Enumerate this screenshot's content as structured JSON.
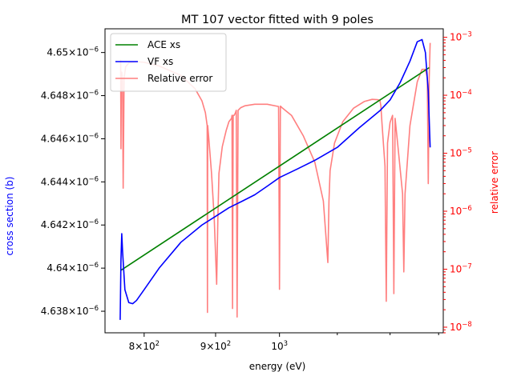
{
  "chart_data": {
    "type": "line",
    "title": "MT 107 vector fitted with 9 poles",
    "xlabel": "energy (eV)",
    "ylabel": "cross section (b)",
    "y2label": "relative error",
    "xscale": "log",
    "y2scale": "log",
    "xlim": [
      750,
      1310
    ],
    "ylim": [
      4.637e-06,
      4.6511e-06
    ],
    "y2lim": [
      8e-09,
      0.0014
    ],
    "colors": {
      "ace": "#008000",
      "vf": "#0000ff",
      "err": "#ff7f7f",
      "ylabel": "#0000ff",
      "y2label": "#ff0000"
    },
    "x_ticks": [
      {
        "value": 800,
        "base": "8×10",
        "exp": "2"
      },
      {
        "value": 900,
        "base": "9×10",
        "exp": "2"
      },
      {
        "value": 1000,
        "base": "10",
        "exp": "3"
      }
    ],
    "y_ticks": [
      {
        "value": 4.638e-06,
        "base": "4.638×10",
        "exp": "−6"
      },
      {
        "value": 4.64e-06,
        "base": "4.64×10",
        "exp": "−6"
      },
      {
        "value": 4.642e-06,
        "base": "4.642×10",
        "exp": "−6"
      },
      {
        "value": 4.644e-06,
        "base": "4.644×10",
        "exp": "−6"
      },
      {
        "value": 4.646e-06,
        "base": "4.646×10",
        "exp": "−6"
      },
      {
        "value": 4.648e-06,
        "base": "4.648×10",
        "exp": "−6"
      },
      {
        "value": 4.65e-06,
        "base": "4.65×10",
        "exp": "−6"
      }
    ],
    "y2_ticks": [
      {
        "value": 1e-08,
        "base": "10",
        "exp": "−8"
      },
      {
        "value": 1e-07,
        "base": "10",
        "exp": "−7"
      },
      {
        "value": 1e-06,
        "base": "10",
        "exp": "−6"
      },
      {
        "value": 1e-05,
        "base": "10",
        "exp": "−5"
      },
      {
        "value": 0.0001,
        "base": "10",
        "exp": "−4"
      },
      {
        "value": 0.001,
        "base": "10",
        "exp": "−3"
      }
    ],
    "legend": {
      "position": "top-left",
      "entries": [
        "ACE xs",
        "VF xs",
        "Relative error"
      ]
    },
    "series": [
      {
        "name": "ACE xs",
        "axis": "left",
        "x": [
          770,
          1280
        ],
        "y": [
          4.6399e-06,
          4.6493e-06
        ]
      },
      {
        "name": "VF xs",
        "axis": "left",
        "x": [
          769,
          770,
          771,
          772,
          775,
          780,
          785,
          790,
          800,
          820,
          850,
          880,
          900,
          920,
          940,
          960,
          980,
          1000,
          1030,
          1060,
          1100,
          1140,
          1180,
          1200,
          1220,
          1240,
          1255,
          1265,
          1272,
          1278,
          1282
        ],
        "y": [
          4.6376e-06,
          4.6404e-06,
          4.6416e-06,
          4.6408e-06,
          4.639e-06,
          4.6384e-06,
          4.63835e-06,
          4.6385e-06,
          4.639e-06,
          4.64e-06,
          4.6412e-06,
          4.642e-06,
          4.6424e-06,
          4.6428e-06,
          4.6431e-06,
          4.6434e-06,
          4.6438e-06,
          4.6442e-06,
          4.6446e-06,
          4.645e-06,
          4.6456e-06,
          4.6465e-06,
          4.6473e-06,
          4.6478e-06,
          4.6486e-06,
          4.6496e-06,
          4.6505e-06,
          4.6506e-06,
          4.65e-06,
          4.6482e-06,
          4.6456e-06
        ]
      },
      {
        "name": "Relative error",
        "axis": "right",
        "x": [
          769,
          769.6,
          770,
          770.5,
          771,
          772,
          772.8,
          773.3,
          774,
          776,
          780,
          790,
          800,
          820,
          850,
          870,
          880,
          885,
          887.6,
          888,
          888.4,
          890,
          894,
          898,
          901.6,
          903.4,
          905,
          910,
          916,
          920,
          924,
          924.7,
          925.5,
          926.5,
          928,
          930,
          931.2,
          932.5,
          934,
          938,
          945,
          960,
          980,
          995,
          998.5,
          1000,
          1001.5,
          1005,
          1020,
          1040,
          1060,
          1075,
          1083,
          1085,
          1087,
          1095,
          1110,
          1130,
          1150,
          1165,
          1175,
          1180,
          1182,
          1184,
          1190,
          1192.5,
          1195,
          1200,
          1205,
          1207.5,
          1210,
          1215,
          1225,
          1227.5,
          1230,
          1240,
          1255,
          1265,
          1272,
          1276,
          1278,
          1280,
          1282
        ],
        "y": [
          0.0004,
          0.0004,
          1.2e-05,
          0.0002,
          0.00025,
          0.00018,
          2.5e-06,
          1.5e-05,
          0.0002,
          0.00031,
          0.00036,
          0.00038,
          0.00037,
          0.00032,
          0.00022,
          0.00013,
          8e-05,
          5e-05,
          3e-05,
          1.8e-08,
          3e-05,
          1.8e-05,
          4.5e-06,
          7.5e-07,
          5.5e-08,
          7.5e-07,
          4.5e-06,
          1.3e-05,
          2.5e-05,
          3.5e-05,
          4e-05,
          4.5e-05,
          2.1e-08,
          4.5e-05,
          4.5e-05,
          5e-05,
          5.5e-05,
          1.5e-08,
          5.5e-05,
          6.1e-05,
          6.6e-05,
          7e-05,
          7e-05,
          6.5e-05,
          6.4e-05,
          4.5e-08,
          6.5e-05,
          6e-05,
          4.5e-05,
          2e-05,
          7e-06,
          1.5e-06,
          1.3e-07,
          1.5e-06,
          5e-06,
          1.5e-05,
          3.5e-05,
          6e-05,
          7.8e-05,
          8.5e-05,
          8.4e-05,
          8.2e-05,
          6.5e-05,
          3.4e-05,
          6e-06,
          2.8e-08,
          1.5e-05,
          3.4e-05,
          4.5e-05,
          3.8e-08,
          4e-05,
          1.5e-05,
          2e-06,
          9e-08,
          2e-06,
          3e-05,
          0.00017,
          0.00028,
          0.00028,
          0.0002,
          3e-06,
          0.0002,
          0.0008
        ]
      }
    ]
  }
}
